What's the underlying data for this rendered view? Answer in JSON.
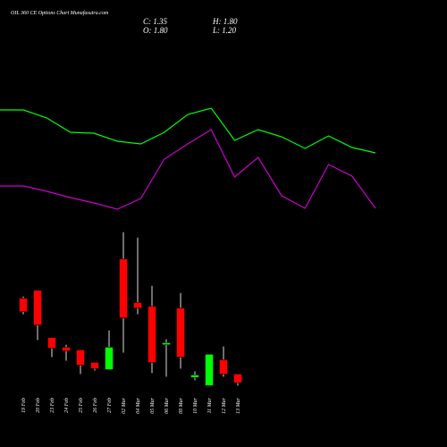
{
  "chart_data": [
    {
      "type": "candlestick",
      "title": "OIL 360 CE Options Chart Munafasutra.com",
      "ohlc_labels": [
        "C: 1.35",
        "H: 1.80",
        "O: 1.80",
        "L: 1.20"
      ],
      "categories": [
        "19 Feb",
        "20 Feb",
        "23 Feb",
        "24 Feb",
        "25 Feb",
        "26 Feb",
        "27 Feb",
        "02 Mar",
        "04 Mar",
        "05 Mar",
        "06 Mar",
        "09 Mar",
        "10 Mar",
        "11 Mar",
        "12 Mar",
        "13 Mar"
      ],
      "open": [
        5.73,
        6.14,
        3.69,
        3.19,
        3.05,
        2.4,
        2.03,
        7.76,
        5.5,
        5.31,
        3.32,
        5.22,
        1.62,
        1.2,
        2.54,
        1.8
      ],
      "high": [
        5.82,
        6.14,
        3.69,
        3.32,
        3.05,
        2.4,
        4.06,
        9.15,
        8.87,
        6.37,
        3.6,
        6.0,
        1.94,
        2.82,
        3.23,
        1.8
      ],
      "low": [
        4.9,
        3.56,
        2.68,
        2.49,
        1.8,
        1.98,
        2.03,
        2.91,
        4.9,
        1.85,
        1.66,
        2.08,
        1.48,
        1.2,
        1.66,
        1.2
      ],
      "close": [
        5.03,
        4.34,
        3.14,
        3.0,
        2.26,
        2.08,
        3.19,
        4.71,
        5.22,
        2.4,
        3.42,
        2.68,
        1.75,
        2.82,
        1.8,
        1.35
      ],
      "up_color": "#00ff00",
      "down_color": "#ff0000",
      "wick_color": "#dddddd",
      "ylim": [
        0.8,
        9.6
      ]
    },
    {
      "type": "line",
      "series": [
        {
          "color": "#00ff00",
          "values": [
            127,
            127,
            118,
            102,
            101,
            92,
            89,
            102,
            122,
            129,
            93,
            105,
            97,
            84,
            98,
            85,
            79
          ]
        },
        {
          "color": "#cc00cc",
          "values": [
            42,
            42,
            36,
            29,
            23,
            16,
            28,
            72,
            89,
            105,
            52,
            74,
            31,
            17,
            66,
            53,
            17
          ]
        }
      ],
      "ylim": [
        0,
        140
      ]
    }
  ]
}
